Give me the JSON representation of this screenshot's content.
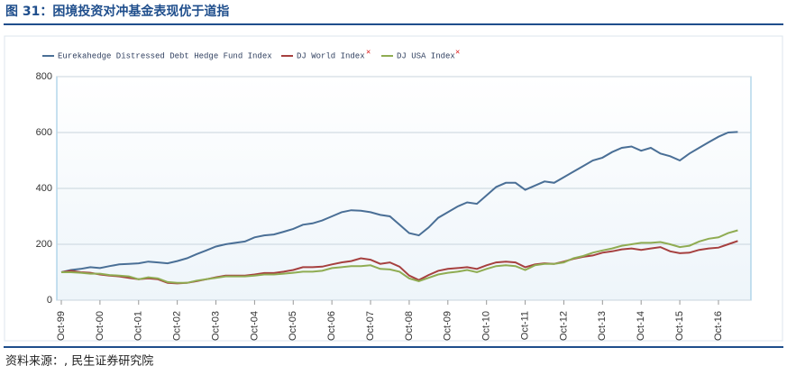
{
  "chart_data": {
    "type": "line",
    "title": "图 31：困境投资对冲基金表现优于道指",
    "source": "资料来源：, 民生证券研究院",
    "categories": [
      "Oct-99",
      null,
      null,
      null,
      "Oct-00",
      null,
      null,
      null,
      "Oct-01",
      null,
      null,
      null,
      "Oct-02",
      null,
      null,
      null,
      "Oct-03",
      null,
      null,
      null,
      "Oct-04",
      null,
      null,
      null,
      "Oct-05",
      null,
      null,
      null,
      "Oct-06",
      null,
      null,
      null,
      "Oct-07",
      null,
      null,
      null,
      "Oct-08",
      null,
      null,
      null,
      "Oct-09",
      null,
      null,
      null,
      "Oct-10",
      null,
      null,
      null,
      "Oct-11",
      null,
      null,
      null,
      "Oct-12",
      null,
      null,
      null,
      "Oct-13",
      null,
      null,
      null,
      "Oct-14",
      null,
      null,
      null,
      "Oct-15",
      null,
      null,
      null,
      "Oct-16",
      null,
      null
    ],
    "series": [
      {
        "name": "Eurekahedge Distressed Debt Hedge Fund Index",
        "color": "#4a6f96",
        "values": [
          100,
          108,
          112,
          118,
          115,
          122,
          128,
          130,
          132,
          138,
          135,
          132,
          140,
          150,
          165,
          178,
          192,
          200,
          205,
          210,
          225,
          232,
          235,
          245,
          255,
          270,
          275,
          285,
          300,
          315,
          322,
          320,
          315,
          305,
          300,
          270,
          240,
          232,
          260,
          295,
          315,
          335,
          350,
          345,
          375,
          405,
          420,
          420,
          395,
          410,
          425,
          420,
          440,
          460,
          480,
          500,
          510,
          530,
          545,
          550,
          535,
          545,
          525,
          515,
          500,
          525,
          545,
          565,
          585,
          600,
          602
        ]
      },
      {
        "name": "DJ World Index",
        "color": "#a6403f",
        "values": [
          100,
          105,
          100,
          98,
          92,
          88,
          85,
          80,
          75,
          78,
          75,
          62,
          60,
          62,
          68,
          75,
          82,
          88,
          88,
          88,
          92,
          97,
          97,
          102,
          108,
          118,
          118,
          120,
          128,
          135,
          140,
          150,
          145,
          130,
          135,
          120,
          88,
          72,
          90,
          105,
          112,
          115,
          118,
          112,
          125,
          135,
          138,
          135,
          118,
          128,
          132,
          130,
          138,
          148,
          155,
          160,
          170,
          175,
          182,
          185,
          180,
          185,
          190,
          175,
          168,
          170,
          180,
          185,
          188,
          200,
          212
        ]
      },
      {
        "name": "DJ USA Index",
        "color": "#8fac52",
        "values": [
          100,
          100,
          98,
          95,
          95,
          90,
          88,
          85,
          75,
          82,
          78,
          65,
          62,
          62,
          70,
          75,
          80,
          85,
          85,
          85,
          88,
          92,
          92,
          95,
          98,
          102,
          102,
          105,
          115,
          118,
          122,
          122,
          125,
          112,
          110,
          102,
          78,
          68,
          80,
          92,
          98,
          102,
          108,
          100,
          112,
          122,
          125,
          122,
          108,
          125,
          130,
          130,
          135,
          150,
          158,
          170,
          178,
          185,
          195,
          200,
          205,
          205,
          208,
          200,
          190,
          195,
          210,
          220,
          225,
          240,
          250
        ]
      }
    ],
    "ylim": [
      0,
      800
    ],
    "yticks": [
      0,
      200,
      400,
      600,
      800
    ],
    "grid": true
  }
}
